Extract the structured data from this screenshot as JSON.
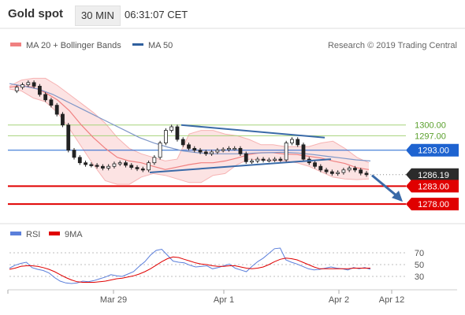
{
  "header": {
    "title": "Gold spot",
    "interval": "30 MIN",
    "time": "06:31:07 CET"
  },
  "chart_data": [
    {
      "type": "candlestick",
      "title": "Gold spot",
      "legend": [
        {
          "name": "MA 20 + Bollinger Bands",
          "color": "#f08080"
        },
        {
          "name": "MA 50",
          "color": "#2f5f9e"
        }
      ],
      "credit": "Research © 2019 Trading Central",
      "y_range": [
        1273,
        1319
      ],
      "levels": [
        {
          "label": "1300.00",
          "value": 1300.0,
          "kind": "target",
          "color": "#5aa02c"
        },
        {
          "label": "1297.00",
          "value": 1297.0,
          "kind": "target",
          "color": "#5aa02c"
        },
        {
          "label": "1293.00",
          "value": 1293.0,
          "kind": "pivot",
          "color": "#1e63d0"
        },
        {
          "label": "1286.19",
          "value": 1286.19,
          "kind": "last",
          "color": "#2b2b2b"
        },
        {
          "label": "1283.00",
          "value": 1283.0,
          "kind": "support",
          "color": "#e00000"
        },
        {
          "label": "1278.00",
          "value": 1278.0,
          "kind": "support",
          "color": "#e00000"
        }
      ],
      "x_ticks": [
        "Mar 29",
        "Apr 1",
        "Apr 2",
        "Apr 12"
      ],
      "price_path": [
        1309.5,
        1310.5,
        1311.2,
        1311.8,
        1310.8,
        1308.5,
        1307.0,
        1305.5,
        1303.0,
        1300.0,
        1293.0,
        1291.0,
        1289.5,
        1289.0,
        1288.8,
        1288.5,
        1288.0,
        1288.5,
        1289.2,
        1289.5,
        1288.8,
        1288.2,
        1287.8,
        1287.5,
        1289.5,
        1291.0,
        1295.0,
        1298.5,
        1299.5,
        1296.0,
        1294.5,
        1293.5,
        1293.0,
        1292.5,
        1292.0,
        1292.5,
        1293.0,
        1293.2,
        1293.5,
        1293.5,
        1292.0,
        1289.8,
        1290.0,
        1290.5,
        1290.2,
        1290.3,
        1290.5,
        1290.3,
        1295.0,
        1296.0,
        1294.5,
        1290.5,
        1289.5,
        1288.5,
        1287.5,
        1287.0,
        1286.5,
        1286.8,
        1287.5,
        1288.0,
        1287.5,
        1286.6,
        1286.19
      ],
      "bollinger": {
        "middle": [
          1310.5,
          1311.0,
          1310.5,
          1309.0,
          1307.0,
          1304.0,
          1300.0,
          1296.5,
          1293.5,
          1291.0,
          1290.0,
          1289.5,
          1288.5,
          1287.6,
          1288.3,
          1289.0,
          1289.5,
          1289.5,
          1290.0,
          1290.8,
          1291.8,
          1292.3,
          1292.3,
          1291.9,
          1291.8,
          1291.3,
          1290.8,
          1290.0,
          1289.3,
          1288.1,
          1287.6
        ],
        "upper": [
          1310.8,
          1312.5,
          1313.0,
          1313.0,
          1311.0,
          1308.5,
          1306.0,
          1303.5,
          1300.5,
          1296.5,
          1293.5,
          1292.0,
          1291.0,
          1290.0,
          1290.5,
          1297.5,
          1298.5,
          1298.5,
          1297.5,
          1297.0,
          1296.0,
          1294.5,
          1294.5,
          1294.0,
          1294.0,
          1294.0,
          1295.0,
          1295.5,
          1293.5,
          1291.0,
          1289.5
        ],
        "lower": [
          1310.0,
          1309.5,
          1307.5,
          1306.5,
          1303.5,
          1299.0,
          1294.0,
          1289.0,
          1284.5,
          1283.5,
          1283.5,
          1285.5,
          1286.5,
          1286.0,
          1285.0,
          1284.0,
          1284.0,
          1286.0,
          1286.5,
          1289.0,
          1290.5,
          1290.3,
          1290.0,
          1290.0,
          1289.5,
          1288.5,
          1287.0,
          1285.5,
          1285.0,
          1284.8,
          1285.0
        ]
      },
      "ma50": [
        1311.5,
        1310.8,
        1310.0,
        1308.5,
        1306.5,
        1304.5,
        1302.5,
        1300.5,
        1298.5,
        1296.5,
        1295.0,
        1293.8,
        1292.8,
        1292.3,
        1292.0,
        1292.0,
        1292.0,
        1292.2,
        1292.3,
        1292.4,
        1292.2,
        1291.8,
        1291.3,
        1290.8,
        1290.3,
        1290.0
      ],
      "trendlines": [
        {
          "name": "upper",
          "from": 1300.0,
          "to": 1296.5
        },
        {
          "name": "lower",
          "from": 1286.8,
          "to": 1290.5
        }
      ],
      "projection": {
        "from": 1286.0,
        "to": 1278.0
      }
    },
    {
      "type": "line",
      "legend": [
        {
          "name": "RSI",
          "color": "#5b7fdb"
        },
        {
          "name": "9MA",
          "color": "#e00000"
        }
      ],
      "y_ticks": [
        70,
        50,
        30
      ],
      "ylim": [
        10,
        90
      ],
      "series": [
        {
          "name": "RSI",
          "values": [
            44,
            49,
            52,
            54,
            45,
            42,
            40,
            36,
            28,
            22,
            19,
            18,
            19,
            22,
            21,
            23,
            26,
            29,
            33,
            31,
            30,
            34,
            38,
            47,
            55,
            66,
            74,
            76,
            66,
            56,
            54,
            53,
            49,
            46,
            47,
            48,
            43,
            45,
            48,
            51,
            44,
            41,
            38,
            47,
            55,
            61,
            69,
            77,
            78,
            58,
            54,
            51,
            47,
            43,
            41,
            42,
            44,
            46,
            44,
            43,
            41,
            45,
            43,
            45,
            42
          ]
        },
        {
          "name": "9MA",
          "values": [
            42,
            44,
            47,
            48,
            48,
            47,
            45,
            42,
            38,
            33,
            28,
            24,
            21,
            20,
            20,
            20,
            21,
            22,
            24,
            26,
            27,
            29,
            31,
            34,
            38,
            43,
            49,
            55,
            60,
            63,
            62,
            59,
            56,
            53,
            51,
            50,
            48,
            47,
            47,
            48,
            48,
            46,
            44,
            43,
            44,
            46,
            50,
            55,
            59,
            61,
            60,
            58,
            54,
            50,
            46,
            43,
            43,
            43,
            43,
            43,
            43,
            44,
            44,
            44,
            44
          ]
        }
      ]
    }
  ]
}
